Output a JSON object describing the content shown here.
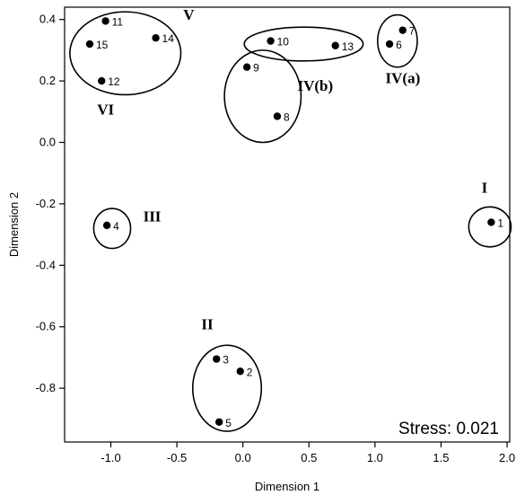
{
  "chart_data": {
    "type": "scatter",
    "title": "",
    "xlabel": "Dimension 1",
    "ylabel": "Dimension 2",
    "xlim": [
      -1.35,
      2.02
    ],
    "ylim": [
      -0.975,
      0.44
    ],
    "xticks": [
      -1.0,
      -0.5,
      0.0,
      0.5,
      1.0,
      1.5,
      2.0
    ],
    "xtick_labels": [
      "-1.0",
      "-0.5",
      "0.0",
      "0.5",
      "1.0",
      "1.5",
      "2.0"
    ],
    "yticks": [
      -0.8,
      -0.6,
      -0.4,
      -0.2,
      0.0,
      0.2,
      0.4
    ],
    "ytick_labels": [
      "-0.8",
      "-0.6",
      "-0.4",
      "-0.2",
      "0.0",
      "0.2",
      "0.4"
    ],
    "grid": false,
    "points": [
      {
        "label": "1",
        "x": 1.88,
        "y": -0.26
      },
      {
        "label": "2",
        "x": -0.02,
        "y": -0.745
      },
      {
        "label": "3",
        "x": -0.2,
        "y": -0.705
      },
      {
        "label": "4",
        "x": -1.03,
        "y": -0.27
      },
      {
        "label": "5",
        "x": -0.18,
        "y": -0.91
      },
      {
        "label": "6",
        "x": 1.11,
        "y": 0.32
      },
      {
        "label": "7",
        "x": 1.21,
        "y": 0.365
      },
      {
        "label": "8",
        "x": 0.26,
        "y": 0.085
      },
      {
        "label": "9",
        "x": 0.03,
        "y": 0.245
      },
      {
        "label": "10",
        "x": 0.21,
        "y": 0.33
      },
      {
        "label": "11",
        "x": -1.04,
        "y": 0.395
      },
      {
        "label": "12",
        "x": -1.07,
        "y": 0.2
      },
      {
        "label": "13",
        "x": 0.7,
        "y": 0.315
      },
      {
        "label": "14",
        "x": -0.66,
        "y": 0.34
      },
      {
        "label": "15",
        "x": -1.16,
        "y": 0.32
      }
    ],
    "clusters": [
      {
        "label": "I",
        "cx": 1.87,
        "cy": -0.275,
        "rx": 0.16,
        "ry": 0.065
      },
      {
        "label": "II",
        "cx": -0.12,
        "cy": -0.8,
        "rx": 0.26,
        "ry": 0.14
      },
      {
        "label": "III",
        "cx": -0.99,
        "cy": -0.28,
        "rx": 0.14,
        "ry": 0.065
      },
      {
        "label": "IV(a)",
        "cx": 1.17,
        "cy": 0.33,
        "rx": 0.15,
        "ry": 0.085
      },
      {
        "label": "IV(b)",
        "cx": 0.15,
        "cy": 0.15,
        "rx": 0.29,
        "ry": 0.15
      },
      {
        "label": "V",
        "cx": 0.46,
        "cy": 0.32,
        "rx": 0.45,
        "ry": 0.055
      },
      {
        "label": "VI",
        "cx": -0.89,
        "cy": 0.29,
        "rx": 0.42,
        "ry": 0.135
      }
    ],
    "annotations": [
      {
        "text": "Stress: 0.021"
      }
    ]
  }
}
